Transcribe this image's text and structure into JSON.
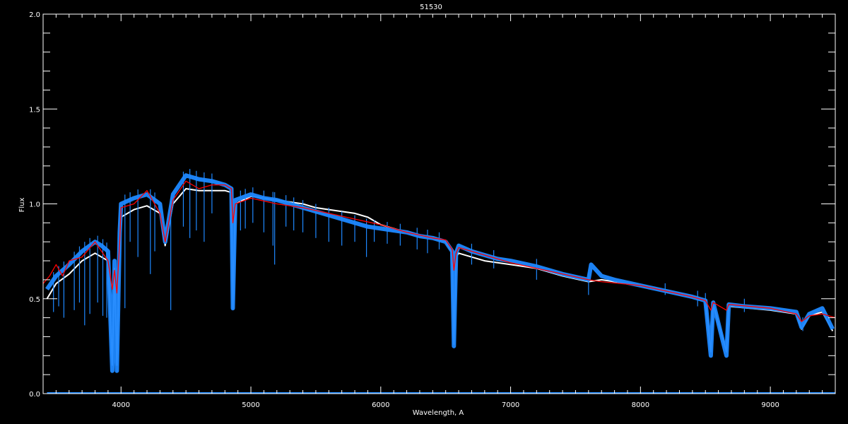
{
  "chart_data": {
    "type": "line",
    "title": "51530",
    "xlabel": "Wavelength, A",
    "ylabel": "Flux",
    "xlim": [
      3400,
      9500
    ],
    "ylim": [
      0.0,
      2.0
    ],
    "xticks": [
      "4000",
      "5000",
      "6000",
      "7000",
      "8000",
      "9000"
    ],
    "yticks": [
      "0.0",
      "0.5",
      "1.0",
      "1.5",
      "2.0"
    ],
    "grid": false,
    "colors": {
      "background": "#000000",
      "axes": "#ffffff",
      "observed_blue": "#1e88ff",
      "observed_white": "#ffffff",
      "model": "#ff0000"
    },
    "series": [
      {
        "color": "#ffffff",
        "x": [
          3430,
          3500,
          3600,
          3700,
          3800,
          3900,
          3933,
          3950,
          3968,
          3990,
          4000,
          4100,
          4200,
          4300,
          4340,
          4400,
          4500,
          4600,
          4700,
          4800,
          4850,
          4861,
          4880,
          5000,
          5200,
          5400,
          5500,
          5600,
          5700,
          5800,
          5900,
          6000,
          6200,
          6400,
          6500,
          6550,
          6563,
          6580,
          6600,
          6700,
          6800,
          7000,
          7200,
          7400,
          7600,
          7700,
          8000,
          8200,
          8400,
          8500,
          8542,
          8560,
          8662,
          8680,
          9000,
          9200,
          9240,
          9300,
          9400,
          9480
        ],
        "y": [
          0.5,
          0.58,
          0.63,
          0.7,
          0.74,
          0.7,
          0.15,
          0.66,
          0.15,
          0.8,
          0.93,
          0.97,
          0.99,
          0.95,
          0.78,
          1.0,
          1.08,
          1.07,
          1.07,
          1.07,
          1.06,
          0.45,
          1.0,
          1.04,
          1.02,
          1.0,
          0.98,
          0.97,
          0.96,
          0.95,
          0.93,
          0.89,
          0.85,
          0.82,
          0.8,
          0.74,
          0.26,
          0.72,
          0.74,
          0.72,
          0.7,
          0.68,
          0.66,
          0.62,
          0.59,
          0.6,
          0.57,
          0.54,
          0.51,
          0.49,
          0.22,
          0.47,
          0.22,
          0.46,
          0.44,
          0.42,
          0.34,
          0.41,
          0.43,
          0.33
        ]
      },
      {
        "color": "#1e88ff",
        "x": [
          3430,
          3500,
          3600,
          3700,
          3800,
          3850,
          3900,
          3933,
          3950,
          3968,
          3990,
          4000,
          4100,
          4200,
          4300,
          4340,
          4400,
          4500,
          4600,
          4700,
          4800,
          4850,
          4861,
          4880,
          5000,
          5100,
          5200,
          5300,
          5400,
          5500,
          5600,
          5700,
          5800,
          5900,
          6000,
          6100,
          6200,
          6300,
          6400,
          6500,
          6550,
          6563,
          6580,
          6600,
          6700,
          6800,
          6900,
          7000,
          7200,
          7400,
          7600,
          7620,
          7700,
          7800,
          8000,
          8200,
          8400,
          8500,
          8542,
          8560,
          8662,
          8680,
          8800,
          9000,
          9200,
          9240,
          9300,
          9400,
          9480
        ],
        "y": [
          0.55,
          0.62,
          0.68,
          0.75,
          0.8,
          0.78,
          0.75,
          0.12,
          0.7,
          0.12,
          0.85,
          1.0,
          1.03,
          1.05,
          1.0,
          0.8,
          1.05,
          1.15,
          1.13,
          1.12,
          1.1,
          1.08,
          0.45,
          1.02,
          1.05,
          1.03,
          1.02,
          1.0,
          0.98,
          0.96,
          0.94,
          0.92,
          0.9,
          0.88,
          0.87,
          0.86,
          0.85,
          0.83,
          0.82,
          0.8,
          0.75,
          0.25,
          0.74,
          0.78,
          0.75,
          0.73,
          0.71,
          0.7,
          0.67,
          0.63,
          0.6,
          0.68,
          0.62,
          0.6,
          0.57,
          0.54,
          0.51,
          0.49,
          0.2,
          0.48,
          0.2,
          0.47,
          0.46,
          0.45,
          0.43,
          0.35,
          0.42,
          0.45,
          0.34
        ]
      },
      {
        "color": "#ff0000",
        "x": [
          3400,
          3450,
          3500,
          3550,
          3600,
          3700,
          3800,
          3850,
          3900,
          3933,
          3950,
          3968,
          3990,
          4000,
          4100,
          4200,
          4300,
          4340,
          4400,
          4500,
          4600,
          4700,
          4800,
          4850,
          4861,
          4880,
          5000,
          5200,
          5400,
          5600,
          5800,
          6000,
          6200,
          6400,
          6500,
          6550,
          6563,
          6580,
          6600,
          6800,
          7000,
          7200,
          7400,
          7600,
          7700,
          8000,
          8200,
          8400,
          8500,
          8542,
          8560,
          8662,
          8680,
          9000,
          9200,
          9240,
          9300,
          9400,
          9500
        ],
        "y": [
          0.58,
          0.62,
          0.68,
          0.62,
          0.7,
          0.72,
          0.8,
          0.75,
          0.7,
          0.55,
          0.65,
          0.53,
          0.8,
          0.98,
          1.0,
          1.07,
          0.95,
          0.8,
          1.02,
          1.12,
          1.08,
          1.1,
          1.1,
          1.08,
          0.9,
          1.0,
          1.03,
          1.0,
          0.98,
          0.95,
          0.92,
          0.89,
          0.85,
          0.82,
          0.81,
          0.76,
          0.65,
          0.74,
          0.77,
          0.73,
          0.69,
          0.66,
          0.63,
          0.6,
          0.59,
          0.57,
          0.54,
          0.51,
          0.49,
          0.44,
          0.48,
          0.44,
          0.47,
          0.45,
          0.42,
          0.38,
          0.41,
          0.42,
          0.4
        ]
      }
    ],
    "absorption_spikes": {
      "color": "#1e88ff",
      "x": [
        3480,
        3520,
        3560,
        3640,
        3680,
        3720,
        3760,
        3820,
        3860,
        3890,
        4030,
        4070,
        4130,
        4226,
        4260,
        4383,
        4480,
        4530,
        4580,
        4640,
        4700,
        4920,
        4957,
        5015,
        5100,
        5170,
        5183,
        5270,
        5330,
        5400,
        5500,
        5600,
        5700,
        5800,
        5890,
        5950,
        6050,
        6150,
        6280,
        6360,
        6450,
        6700,
        6870,
        7200,
        7600,
        8190,
        8440,
        8500,
        8800,
        9250
      ],
      "y": [
        0.43,
        0.46,
        0.4,
        0.44,
        0.48,
        0.36,
        0.42,
        0.48,
        0.41,
        0.4,
        0.45,
        0.8,
        0.72,
        0.63,
        0.75,
        0.44,
        0.88,
        0.82,
        0.86,
        0.8,
        0.95,
        0.86,
        0.87,
        0.9,
        0.85,
        0.78,
        0.68,
        0.88,
        0.86,
        0.85,
        0.82,
        0.8,
        0.78,
        0.8,
        0.72,
        0.8,
        0.79,
        0.78,
        0.76,
        0.74,
        0.76,
        0.68,
        0.66,
        0.6,
        0.52,
        0.52,
        0.46,
        0.45,
        0.43,
        0.33
      ]
    },
    "zero_line": {
      "color": "#1e88ff",
      "y": 0.0
    }
  }
}
